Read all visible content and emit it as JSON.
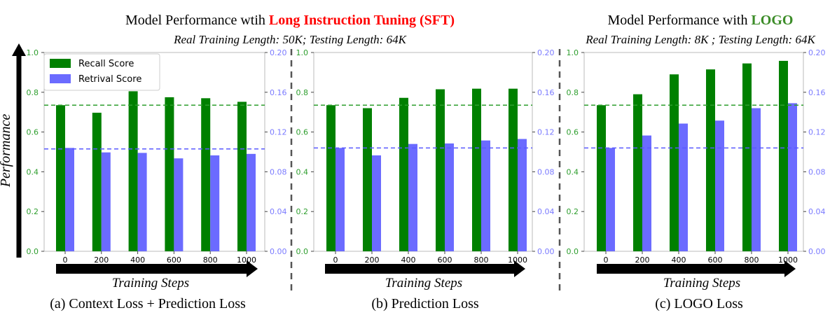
{
  "titles": {
    "sft_prefix": "Model Performance wtih ",
    "sft_highlight": "Long Instruction Tuning (SFT)",
    "sft_subtitle": "Real Training Length: 50K; Testing Length: 64K",
    "logo_prefix": "Model Performance with ",
    "logo_highlight": "LOGO",
    "logo_subtitle": "Real Training Length: 8K ; Testing Length: 64K"
  },
  "colors": {
    "recall": "#008000",
    "retrieval": "#6B6BFF",
    "highlight_red": "#FF0000",
    "highlight_green": "#3C8C28",
    "left_axis_ticks": "#2E9E2E",
    "right_axis_ticks": "#7B7BFF",
    "divider": "#555555"
  },
  "ylabel": "Performance",
  "xlabel": "Training Steps",
  "legend": {
    "recall": "Recall Score",
    "retrieval": "Retrival Score",
    "placement": "upper-left of first panel"
  },
  "chart_data": [
    {
      "type": "bar",
      "caption": "(a) Context Loss + Prediction Loss",
      "categories": [
        "0",
        "200",
        "400",
        "600",
        "800",
        "1000"
      ],
      "series": [
        {
          "name": "Recall Score",
          "axis": "left",
          "values": [
            0.735,
            0.697,
            0.805,
            0.775,
            0.77,
            0.752
          ]
        },
        {
          "name": "Retrival Score",
          "axis": "right",
          "values": [
            0.104,
            0.0995,
            0.099,
            0.0935,
            0.0965,
            0.098
          ]
        }
      ],
      "ylim_left": [
        0,
        1.0
      ],
      "ylim_right": [
        0,
        0.2
      ],
      "ref_left": 0.735,
      "ref_right": 0.103,
      "left_ticks": [
        "0.0",
        "0.2",
        "0.4",
        "0.6",
        "0.8",
        "1.0"
      ],
      "right_ticks": [
        "0.00",
        "0.04",
        "0.08",
        "0.12",
        "0.16",
        "0.20"
      ]
    },
    {
      "type": "bar",
      "caption": "(b) Prediction Loss",
      "categories": [
        "0",
        "200",
        "400",
        "600",
        "800",
        "1000"
      ],
      "series": [
        {
          "name": "Recall Score",
          "axis": "left",
          "values": [
            0.735,
            0.72,
            0.772,
            0.815,
            0.818,
            0.818
          ]
        },
        {
          "name": "Retrival Score",
          "axis": "right",
          "values": [
            0.104,
            0.0965,
            0.108,
            0.1085,
            0.1115,
            0.113
          ]
        }
      ],
      "ylim_left": [
        0,
        1.0
      ],
      "ylim_right": [
        0,
        0.2
      ],
      "ref_left": 0.735,
      "ref_right": 0.104,
      "left_ticks": [
        "0.0",
        "0.2",
        "0.4",
        "0.6",
        "0.8",
        "1.0"
      ],
      "right_ticks": [
        "0.00",
        "0.04",
        "0.08",
        "0.12",
        "0.16",
        "0.20"
      ]
    },
    {
      "type": "bar",
      "caption": "(c) LOGO Loss",
      "categories": [
        "0",
        "200",
        "400",
        "600",
        "800",
        "1000"
      ],
      "series": [
        {
          "name": "Recall Score",
          "axis": "left",
          "values": [
            0.735,
            0.79,
            0.89,
            0.915,
            0.945,
            0.958
          ]
        },
        {
          "name": "Retrival Score",
          "axis": "right",
          "values": [
            0.104,
            0.1165,
            0.1285,
            0.1315,
            0.144,
            0.149
          ]
        }
      ],
      "ylim_left": [
        0,
        1.0
      ],
      "ylim_right": [
        0,
        0.2
      ],
      "ref_left": 0.735,
      "ref_right": 0.104,
      "left_ticks": [
        "0.0",
        "0.2",
        "0.4",
        "0.6",
        "0.8",
        "1.0"
      ],
      "right_ticks": [
        "0.00",
        "0.04",
        "0.08",
        "0.12",
        "0.16",
        "0.20"
      ]
    }
  ]
}
